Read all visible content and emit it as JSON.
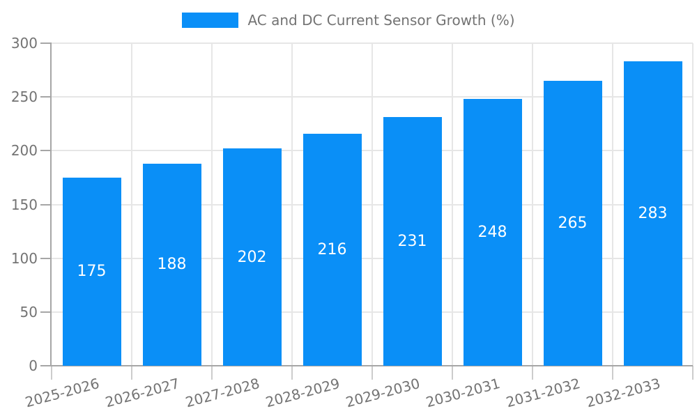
{
  "legend": {
    "label": "AC and DC Current Sensor Growth (%)",
    "swatch_color": "#0a8ff7"
  },
  "chart_data": {
    "type": "bar",
    "title": "AC and DC Current Sensor Growth (%)",
    "categories": [
      "2025-2026",
      "2026-2027",
      "2027-2028",
      "2028-2029",
      "2029-2030",
      "2030-2031",
      "2031-2032",
      "2032-2033"
    ],
    "values": [
      175,
      188,
      202,
      216,
      231,
      248,
      265,
      283
    ],
    "series": [
      {
        "name": "AC and DC Current Sensor Growth (%)",
        "values": [
          175,
          188,
          202,
          216,
          231,
          248,
          265,
          283
        ]
      }
    ],
    "xlabel": "",
    "ylabel": "",
    "ylim": [
      0,
      300
    ],
    "yticks": [
      0,
      50,
      100,
      150,
      200,
      250,
      300
    ],
    "grid": true,
    "legend_position": "top",
    "bar_color": "#0a8ff7",
    "value_label_color": "#ffffff",
    "axis_text_color": "#737373"
  }
}
